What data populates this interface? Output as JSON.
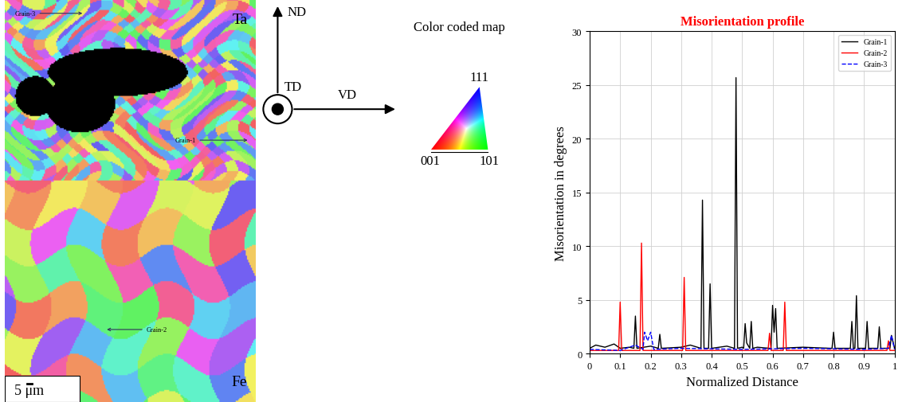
{
  "map_panel": {
    "top_label": "Ta",
    "bottom_label": "Fe",
    "grain_labels": [
      "Grain-3",
      "Grain-1",
      "Grain-2"
    ],
    "scale_bar": "5 μm"
  },
  "axes_diagram": {
    "up": "ND",
    "out_of_plane": "TD",
    "right": "VD"
  },
  "color_key": {
    "title": "Color coded map",
    "corners": [
      "111",
      "001",
      "101"
    ]
  },
  "chart_data": {
    "type": "line",
    "title": "Misorientation profile",
    "x_label": "Normalized Distance",
    "y_label": "Misorientation in degrees",
    "xlim": [
      0,
      1
    ],
    "xticks": [
      0,
      0.1,
      0.2,
      0.3,
      0.4,
      0.5,
      0.6,
      0.7,
      0.8,
      0.9,
      1
    ],
    "ylim": [
      0,
      30
    ],
    "yticks": [
      0,
      5,
      10,
      15,
      20,
      25,
      30
    ],
    "grid": true,
    "legend": "upper right",
    "series": [
      {
        "name": "Grain-1",
        "color": "#000000",
        "line_style": "solid",
        "x": [
          0,
          0.02,
          0.05,
          0.08,
          0.1,
          0.13,
          0.145,
          0.15,
          0.155,
          0.2,
          0.225,
          0.23,
          0.235,
          0.3,
          0.33,
          0.365,
          0.37,
          0.375,
          0.39,
          0.395,
          0.4,
          0.45,
          0.475,
          0.48,
          0.485,
          0.5,
          0.505,
          0.51,
          0.515,
          0.525,
          0.53,
          0.535,
          0.55,
          0.59,
          0.595,
          0.6,
          0.605,
          0.61,
          0.615,
          0.7,
          0.79,
          0.795,
          0.8,
          0.805,
          0.855,
          0.86,
          0.865,
          0.87,
          0.875,
          0.88,
          0.905,
          0.91,
          0.915,
          0.945,
          0.95,
          0.955,
          0.985,
          0.99,
          1.0
        ],
        "values": [
          0.5,
          0.8,
          0.6,
          0.9,
          0.5,
          0.6,
          0.5,
          3.5,
          0.5,
          0.7,
          0.5,
          1.8,
          0.5,
          0.6,
          0.8,
          0.5,
          14.3,
          0.5,
          0.5,
          6.5,
          0.5,
          0.7,
          0.5,
          25.7,
          0.5,
          0.6,
          0.5,
          2.8,
          1,
          0.5,
          3,
          0.5,
          0.6,
          0.5,
          0.5,
          4.5,
          2,
          4.2,
          0.5,
          0.6,
          0.5,
          0.5,
          2,
          0.5,
          0.5,
          3,
          0.5,
          0.5,
          5.4,
          0.5,
          0.5,
          3,
          0.5,
          0.5,
          2.5,
          0.5,
          0.5,
          1.7,
          0.5
        ]
      },
      {
        "name": "Grain-2",
        "color": "#ff0000",
        "line_style": "solid",
        "x": [
          0,
          0.095,
          0.1,
          0.105,
          0.165,
          0.17,
          0.175,
          0.305,
          0.31,
          0.315,
          0.585,
          0.59,
          0.595,
          0.635,
          0.64,
          0.645,
          0.975,
          0.98,
          0.985,
          1.0
        ],
        "values": [
          0.3,
          0.3,
          4.8,
          0.3,
          0.3,
          10.3,
          0.3,
          0.3,
          7.1,
          0.3,
          0.3,
          1.9,
          0.3,
          0.3,
          4.8,
          0.3,
          0.3,
          1.2,
          0.3,
          0.3
        ]
      },
      {
        "name": "Grain-3",
        "color": "#0000ff",
        "line_style": "dashed",
        "x": [
          0,
          0.1,
          0.15,
          0.175,
          0.18,
          0.19,
          0.2,
          0.21,
          0.3,
          0.5,
          0.7,
          0.9,
          0.98,
          0.99,
          1.0
        ],
        "values": [
          0.4,
          0.3,
          0.8,
          0.4,
          2,
          1.2,
          2,
          0.4,
          0.5,
          0.4,
          0.5,
          0.4,
          0.5,
          1.7,
          0.4
        ]
      }
    ]
  }
}
